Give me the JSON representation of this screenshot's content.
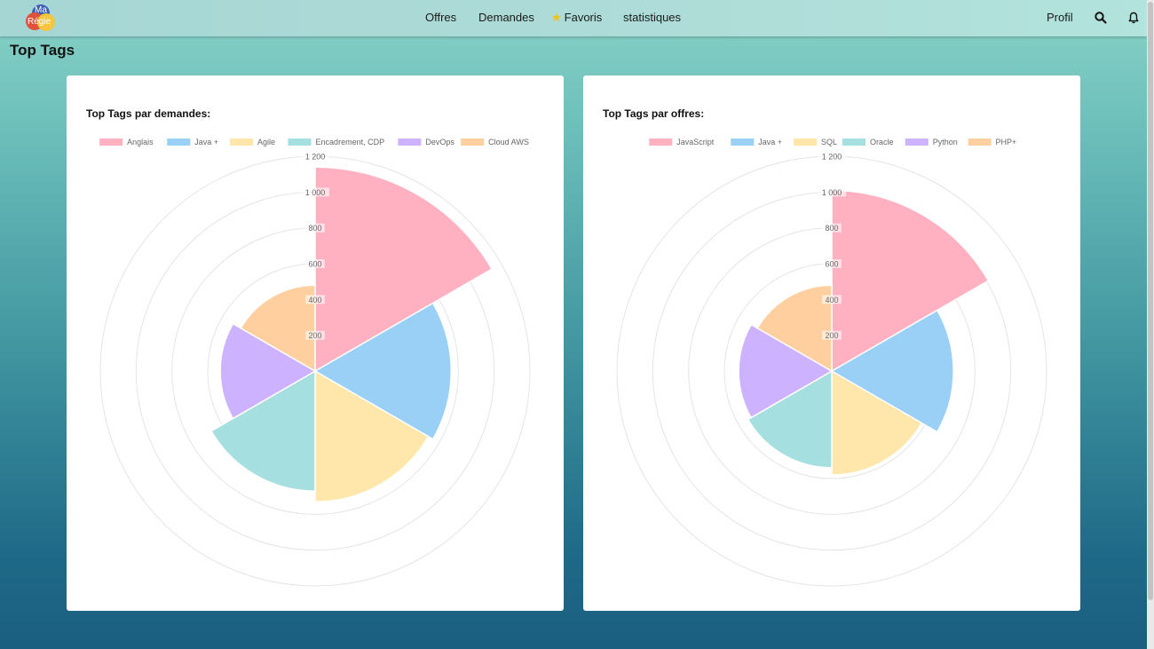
{
  "navbar": {
    "logo_top": "Ma",
    "logo_bottom": "Régie",
    "links": [
      "Offres",
      "Demandes",
      "Favoris",
      "statistiques"
    ],
    "profile": "Profil",
    "icons": [
      "search-icon",
      "bell-icon",
      "star-icon"
    ]
  },
  "page": {
    "title": "Top Tags"
  },
  "colors": [
    "#ffb1c1",
    "#9ad0f5",
    "#ffe6aa",
    "#a5dfdf",
    "#ccb2ff",
    "#ffcf9f"
  ],
  "chart_data": [
    {
      "type": "polarArea",
      "title": "Top Tags par demandes:",
      "categories": [
        "Anglais",
        "Java +",
        "Agile",
        "Encadrement, CDP",
        "DevOps",
        "Cloud AWS"
      ],
      "values": [
        1140,
        760,
        730,
        670,
        530,
        480
      ],
      "rlim": [
        0,
        1200
      ],
      "ticks": [
        "200",
        "400",
        "600",
        "800",
        "1 000",
        "1 200"
      ],
      "legend": "top"
    },
    {
      "type": "polarArea",
      "title": "Top Tags par offres:",
      "categories": [
        "JavaScript",
        "Java +",
        "SQL",
        "Oracle",
        "Python",
        "PHP+"
      ],
      "values": [
        1010,
        680,
        580,
        540,
        520,
        480
      ],
      "rlim": [
        0,
        1200
      ],
      "ticks": [
        "200",
        "400",
        "600",
        "800",
        "1 000",
        "1 200"
      ],
      "legend": "top"
    }
  ]
}
